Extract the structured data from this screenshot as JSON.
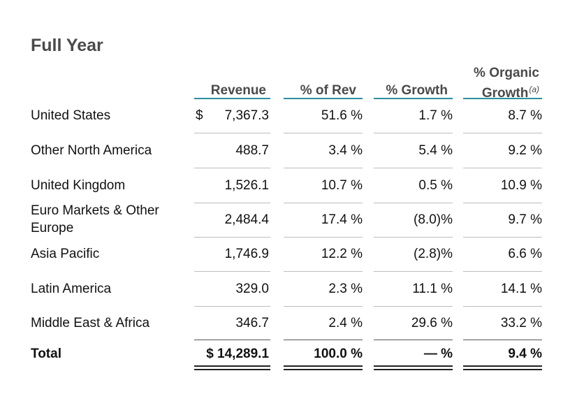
{
  "title": "Full Year",
  "columns": {
    "revenue": "Revenue",
    "pct_rev": "% of Rev",
    "pct_growth": "% Growth",
    "organic_line1": "% Organic",
    "organic_line2": "Growth",
    "organic_footnote": "(a)"
  },
  "currency_symbol": "$",
  "rows": [
    {
      "label": "United States",
      "revenue": "7,367.3",
      "pct_rev": "51.6 %",
      "pct_growth": "1.7 %",
      "organic": "8.7 %"
    },
    {
      "label": "Other North America",
      "revenue": "488.7",
      "pct_rev": "3.4 %",
      "pct_growth": "5.4 %",
      "organic": "9.2 %"
    },
    {
      "label": "United Kingdom",
      "revenue": "1,526.1",
      "pct_rev": "10.7 %",
      "pct_growth": "0.5 %",
      "organic": "10.9 %"
    },
    {
      "label_line1": "Euro Markets & Other",
      "label_line2": "Europe",
      "revenue": "2,484.4",
      "pct_rev": "17.4 %",
      "pct_growth": "(8.0)%",
      "organic": "9.7 %"
    },
    {
      "label": "Asia Pacific",
      "revenue": "1,746.9",
      "pct_rev": "12.2 %",
      "pct_growth": "(2.8)%",
      "organic": "6.6 %"
    },
    {
      "label": "Latin America",
      "revenue": "329.0",
      "pct_rev": "2.3 %",
      "pct_growth": "11.1 %",
      "organic": "14.1 %"
    },
    {
      "label": "Middle East & Africa",
      "revenue": "346.7",
      "pct_rev": "2.4 %",
      "pct_growth": "29.6 %",
      "organic": "33.2 %"
    }
  ],
  "total": {
    "label": "Total",
    "revenue": "$ 14,289.1",
    "pct_rev": "100.0 %",
    "pct_growth": "— %",
    "organic": "9.4 %"
  },
  "colors": {
    "header_rule": "#2a8fa0",
    "heading_text": "#4a4a4a"
  }
}
